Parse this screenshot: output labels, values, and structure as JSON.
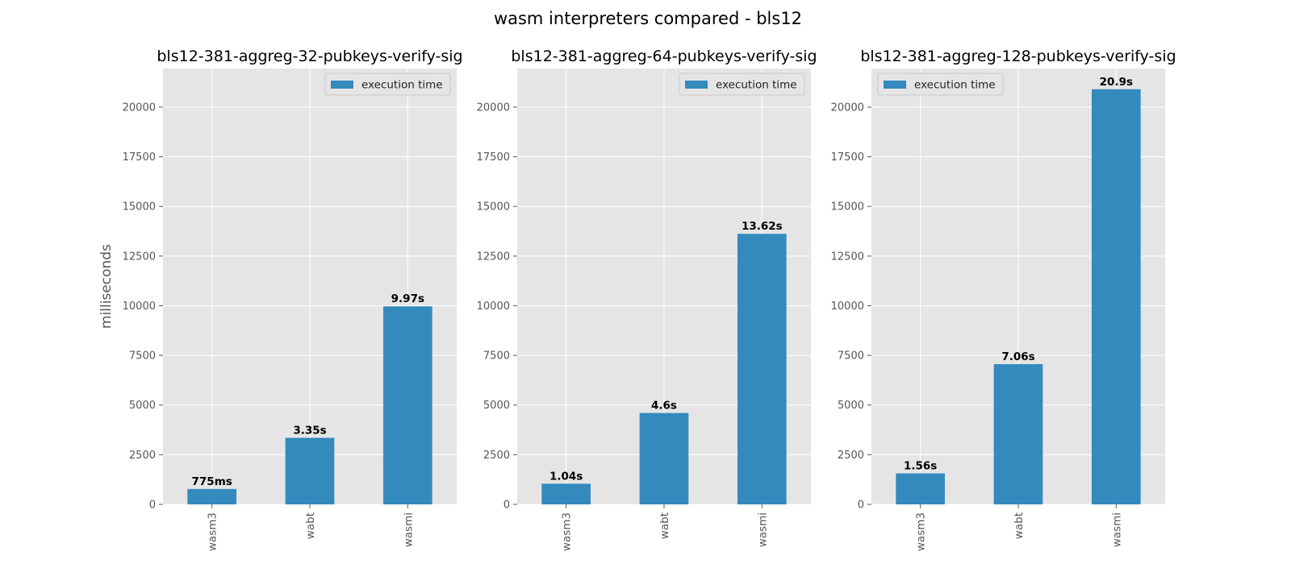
{
  "figure": {
    "title": "wasm interpreters compared - bls12"
  },
  "colors": {
    "bar": "#348abd",
    "plot_bg": "#e5e5e5",
    "grid": "#ffffff",
    "tick_text": "#555555",
    "label_text": "#000000"
  },
  "chart_data": [
    {
      "type": "bar",
      "title": "bls12-381-aggreg-32-pubkeys-verify-sig",
      "xlabel": "",
      "ylabel": "milliseconds",
      "categories": [
        "wasm3",
        "wabt",
        "wasmi"
      ],
      "series": [
        {
          "name": "execution time",
          "values": [
            775,
            3350,
            9970
          ]
        }
      ],
      "data_labels": [
        "775ms",
        "3.35s",
        "9.97s"
      ],
      "ylim": [
        0,
        21945
      ],
      "yticks": [
        0,
        2500,
        5000,
        7500,
        10000,
        12500,
        15000,
        17500,
        20000
      ],
      "legend": "top-right",
      "grid": true
    },
    {
      "type": "bar",
      "title": "bls12-381-aggreg-64-pubkeys-verify-sig",
      "xlabel": "",
      "ylabel": "",
      "categories": [
        "wasm3",
        "wabt",
        "wasmi"
      ],
      "series": [
        {
          "name": "execution time",
          "values": [
            1040,
            4600,
            13620
          ]
        }
      ],
      "data_labels": [
        "1.04s",
        "4.6s",
        "13.62s"
      ],
      "ylim": [
        0,
        21945
      ],
      "yticks": [
        0,
        2500,
        5000,
        7500,
        10000,
        12500,
        15000,
        17500,
        20000
      ],
      "legend": "top-right",
      "grid": true
    },
    {
      "type": "bar",
      "title": "bls12-381-aggreg-128-pubkeys-verify-sig",
      "xlabel": "",
      "ylabel": "",
      "categories": [
        "wasm3",
        "wabt",
        "wasmi"
      ],
      "series": [
        {
          "name": "execution time",
          "values": [
            1560,
            7060,
            20900
          ]
        }
      ],
      "data_labels": [
        "1.56s",
        "7.06s",
        "20.9s"
      ],
      "ylim": [
        0,
        21945
      ],
      "yticks": [
        0,
        2500,
        5000,
        7500,
        10000,
        12500,
        15000,
        17500,
        20000
      ],
      "legend": "top-left",
      "grid": true
    }
  ]
}
